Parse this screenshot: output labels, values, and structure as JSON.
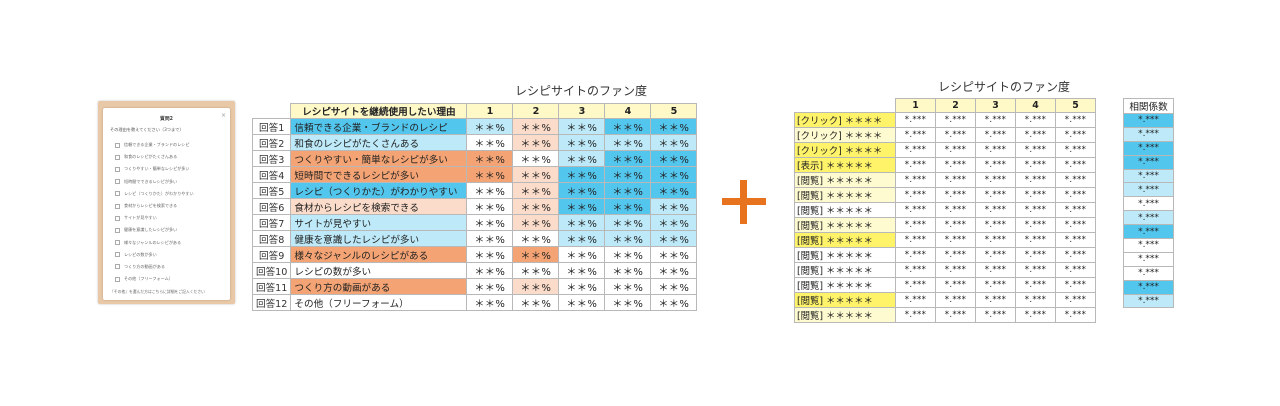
{
  "colors": {
    "yellow": "#fff36a",
    "yellow_light": "#fffbd0",
    "header_yellow": "#fff9c8",
    "blue_dark": "#53c6ee",
    "blue_light": "#bde9f8",
    "orange_dark": "#f4a474",
    "orange_light": "#fbdcca",
    "white": "#ffffff",
    "plus_orange": "#e8731f"
  },
  "survey": {
    "title": "質問2",
    "close": "×",
    "question": "その理由を教えてください（3つまで）",
    "options": [
      "信頼できる企業・ブランドのレシピ",
      "和食のレシピがたくさんある",
      "つくりやすい・簡単なレシピが多い",
      "短時間でできるレシピが多い",
      "レシピ（つくりかた）がわかりやすい",
      "食材からレシピを検索できる",
      "サイトが見やすい",
      "健康を意識したレシピが多い",
      "様々なジャンルのレシピがある",
      "レシピの数が多い",
      "つくり方の動画がある",
      "その他（フリーフォーム）"
    ],
    "note": "『その他』を選んだ方はこちらに詳細をご記入ください"
  },
  "reasons_table": {
    "title": "レシピサイトのファン度",
    "reason_header": "レシピサイトを継続使用したい理由",
    "columns": [
      "1",
      "2",
      "3",
      "4",
      "5"
    ],
    "rows": [
      {
        "label": "回答1",
        "reason": "信頼できる企業・ブランドのレシピ",
        "reason_color": "blue_dark",
        "values": [
          "＊＊%",
          "＊＊%",
          "＊＊%",
          "＊＊%",
          "＊＊%"
        ],
        "colors": [
          "blue_light",
          "orange_light",
          "blue_light",
          "blue_dark",
          "blue_dark"
        ]
      },
      {
        "label": "回答2",
        "reason": "和食のレシピがたくさんある",
        "reason_color": "blue_light",
        "values": [
          "＊＊%",
          "＊＊%",
          "＊＊%",
          "＊＊%",
          "＊＊%"
        ],
        "colors": [
          "white",
          "orange_light",
          "blue_light",
          "blue_light",
          "blue_light"
        ]
      },
      {
        "label": "回答3",
        "reason": "つくりやすい・簡単なレシピが多い",
        "reason_color": "orange_dark",
        "values": [
          "＊＊%",
          "＊＊%",
          "＊＊%",
          "＊＊%",
          "＊＊%"
        ],
        "colors": [
          "orange_dark",
          "white",
          "blue_light",
          "blue_dark",
          "blue_dark"
        ]
      },
      {
        "label": "回答4",
        "reason": "短時間でできるレシピが多い",
        "reason_color": "orange_dark",
        "values": [
          "＊＊%",
          "＊＊%",
          "＊＊%",
          "＊＊%",
          "＊＊%"
        ],
        "colors": [
          "orange_dark",
          "orange_light",
          "blue_dark",
          "blue_dark",
          "blue_dark"
        ]
      },
      {
        "label": "回答5",
        "reason": "レシピ（つくりかた）がわかりやすい",
        "reason_color": "blue_dark",
        "values": [
          "＊＊%",
          "＊＊%",
          "＊＊%",
          "＊＊%",
          "＊＊%"
        ],
        "colors": [
          "white",
          "orange_light",
          "blue_dark",
          "blue_dark",
          "blue_dark"
        ]
      },
      {
        "label": "回答6",
        "reason": "食材からレシピを検索できる",
        "reason_color": "orange_light",
        "values": [
          "＊＊%",
          "＊＊%",
          "＊＊%",
          "＊＊%",
          "＊＊%"
        ],
        "colors": [
          "white",
          "orange_light",
          "blue_dark",
          "blue_dark",
          "blue_light"
        ]
      },
      {
        "label": "回答7",
        "reason": "サイトが見やすい",
        "reason_color": "blue_light",
        "values": [
          "＊＊%",
          "＊＊%",
          "＊＊%",
          "＊＊%",
          "＊＊%"
        ],
        "colors": [
          "white",
          "orange_light",
          "blue_light",
          "blue_light",
          "blue_light"
        ]
      },
      {
        "label": "回答8",
        "reason": "健康を意識したレシピが多い",
        "reason_color": "blue_light",
        "values": [
          "＊＊%",
          "＊＊%",
          "＊＊%",
          "＊＊%",
          "＊＊%"
        ],
        "colors": [
          "white",
          "white",
          "blue_light",
          "blue_light",
          "blue_light"
        ]
      },
      {
        "label": "回答9",
        "reason": "様々なジャンルのレシピがある",
        "reason_color": "orange_dark",
        "values": [
          "＊＊%",
          "＊＊%",
          "＊＊%",
          "＊＊%",
          "＊＊%"
        ],
        "colors": [
          "white",
          "orange_dark",
          "white",
          "white",
          "white"
        ]
      },
      {
        "label": "回答10",
        "reason": "レシピの数が多い",
        "reason_color": "white",
        "values": [
          "＊＊%",
          "＊＊%",
          "＊＊%",
          "＊＊%",
          "＊＊%"
        ],
        "colors": [
          "white",
          "white",
          "white",
          "white",
          "white"
        ]
      },
      {
        "label": "回答11",
        "reason": "つくり方の動画がある",
        "reason_color": "orange_dark",
        "values": [
          "＊＊%",
          "＊＊%",
          "＊＊%",
          "＊＊%",
          "＊＊%"
        ],
        "colors": [
          "white",
          "orange_light",
          "white",
          "white",
          "white"
        ]
      },
      {
        "label": "回答12",
        "reason": "その他（フリーフォーム）",
        "reason_color": "white",
        "values": [
          "＊＊%",
          "＊＊%",
          "＊＊%",
          "＊＊%",
          "＊＊%"
        ],
        "colors": [
          "white",
          "white",
          "white",
          "white",
          "white"
        ]
      }
    ]
  },
  "clicks_table": {
    "title": "レシピサイトのファン度",
    "columns": [
      "1",
      "2",
      "3",
      "4",
      "5"
    ],
    "value_text": "*.***",
    "rows": [
      {
        "label": "[クリック] ＊＊＊＊",
        "color": "yellow"
      },
      {
        "label": "[クリック] ＊＊＊＊",
        "color": "yellow_light"
      },
      {
        "label": "[クリック] ＊＊＊＊",
        "color": "yellow"
      },
      {
        "label": "[表示] ＊＊＊＊＊",
        "color": "yellow"
      },
      {
        "label": "[閲覧] ＊＊＊＊＊",
        "color": "yellow_light"
      },
      {
        "label": "[閲覧] ＊＊＊＊＊",
        "color": "yellow_light"
      },
      {
        "label": "[閲覧] ＊＊＊＊＊",
        "color": "white"
      },
      {
        "label": "[閲覧] ＊＊＊＊＊",
        "color": "yellow_light"
      },
      {
        "label": "[閲覧] ＊＊＊＊＊",
        "color": "yellow"
      },
      {
        "label": "[閲覧] ＊＊＊＊＊",
        "color": "white"
      },
      {
        "label": "[閲覧] ＊＊＊＊＊",
        "color": "white"
      },
      {
        "label": "[閲覧] ＊＊＊＊＊",
        "color": "white"
      },
      {
        "label": "[閲覧] ＊＊＊＊＊",
        "color": "yellow"
      },
      {
        "label": "[閲覧] ＊＊＊＊＊",
        "color": "yellow_light"
      }
    ]
  },
  "correlation": {
    "header": "相関係数",
    "value_text": "*.***",
    "colors": [
      "blue_dark",
      "blue_light",
      "blue_dark",
      "blue_dark",
      "blue_light",
      "blue_light",
      "white",
      "blue_light",
      "blue_dark",
      "white",
      "white",
      "white",
      "blue_dark",
      "blue_light"
    ]
  }
}
